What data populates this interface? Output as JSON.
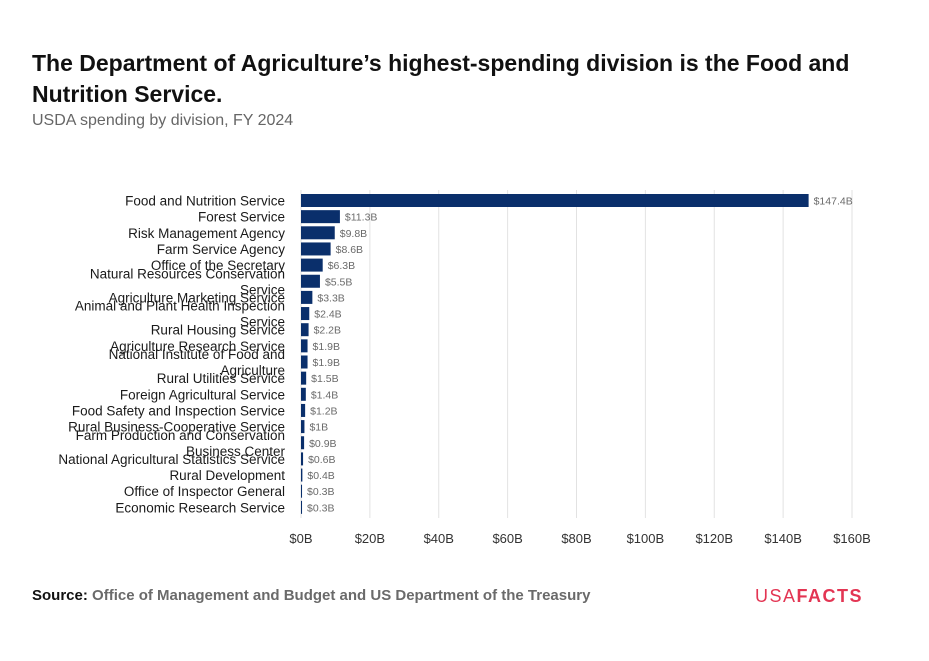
{
  "header": {
    "title": "The Department of Agriculture’s highest-spending division is the Food and Nutrition Service.",
    "subtitle": "USDA spending by division, FY 2024"
  },
  "footer": {
    "source_label": "Source:",
    "source_text": "Office of Management and Budget and US Department of the Treasury",
    "logo_usa": "USA",
    "logo_facts": "FACTS"
  },
  "colors": {
    "bar": "#0a2f6b",
    "grid": "#e2e2e2",
    "label_text": "#1a1a1a",
    "value_text": "#6a6a6a",
    "brand": "#e33553"
  },
  "chart_data": {
    "type": "bar",
    "orientation": "horizontal",
    "categories": [
      "Food and Nutrition Service",
      "Forest Service",
      "Risk Management Agency",
      "Farm Service Agency",
      "Office of the Secretary",
      "Natural Resources Conservation Service",
      "Agriculture Marketing Service",
      "Animal and Plant Health Inspection Service",
      "Rural Housing Service",
      "Agriculture Research Service",
      "National Institute of Food and Agriculture",
      "Rural Utilities Service",
      "Foreign Agricultural Service",
      "Food Safety and Inspection Service",
      "Rural Business-Cooperative Service",
      "Farm Production and Conservation Business Center",
      "National Agricultural Statistics Service",
      "Rural Development",
      "Office of Inspector General",
      "Economic Research Service"
    ],
    "category_lines": [
      [
        "Food and Nutrition Service"
      ],
      [
        "Forest Service"
      ],
      [
        "Risk Management Agency"
      ],
      [
        "Farm Service Agency"
      ],
      [
        "Office of the Secretary"
      ],
      [
        "Natural Resources Conservation",
        "Service"
      ],
      [
        "Agriculture Marketing Service"
      ],
      [
        "Animal and Plant Health Inspection",
        "Service"
      ],
      [
        "Rural Housing Service"
      ],
      [
        "Agriculture Research Service"
      ],
      [
        "National Institute of Food and",
        "Agriculture"
      ],
      [
        "Rural Utilities Service"
      ],
      [
        "Foreign Agricultural Service"
      ],
      [
        "Food Safety and Inspection Service"
      ],
      [
        "Rural Business-Cooperative Service"
      ],
      [
        "Farm Production and Conservation",
        "Business Center"
      ],
      [
        "National Agricultural Statistics Service"
      ],
      [
        "Rural Development"
      ],
      [
        "Office of Inspector General"
      ],
      [
        "Economic Research Service"
      ]
    ],
    "values": [
      147.4,
      11.3,
      9.8,
      8.6,
      6.3,
      5.5,
      3.3,
      2.4,
      2.2,
      1.9,
      1.9,
      1.5,
      1.4,
      1.2,
      1.0,
      0.9,
      0.6,
      0.4,
      0.3,
      0.3
    ],
    "value_labels": [
      "$147.4B",
      "$11.3B",
      "$9.8B",
      "$8.6B",
      "$6.3B",
      "$5.5B",
      "$3.3B",
      "$2.4B",
      "$2.2B",
      "$1.9B",
      "$1.9B",
      "$1.5B",
      "$1.4B",
      "$1.2B",
      "$1B",
      "$0.9B",
      "$0.6B",
      "$0.4B",
      "$0.3B",
      "$0.3B"
    ],
    "x_ticks": [
      0,
      20,
      40,
      60,
      80,
      100,
      120,
      140,
      160
    ],
    "x_tick_labels": [
      "$0B",
      "$20B",
      "$40B",
      "$60B",
      "$80B",
      "$100B",
      "$120B",
      "$140B",
      "$160B"
    ],
    "xlim": [
      0,
      160
    ],
    "unit": "billions of dollars",
    "grid": true,
    "legend": "none"
  }
}
